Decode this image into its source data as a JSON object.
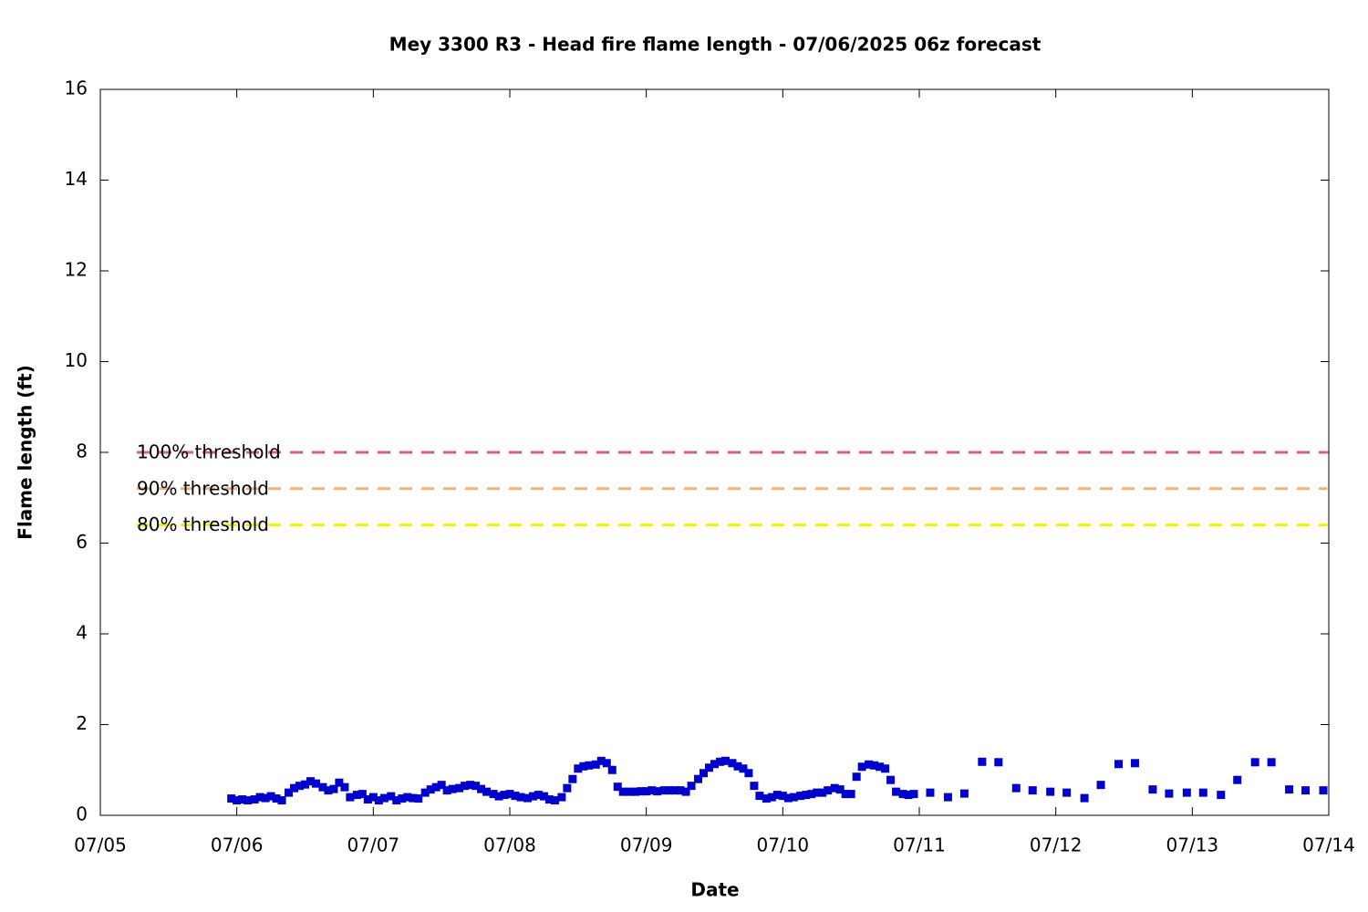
{
  "chart_data": {
    "type": "scatter",
    "title": "Mey 3300 R3 - Head fire flame length - 07/06/2025 06z forecast",
    "xlabel": "Date",
    "ylabel": "Flame length (ft)",
    "xlim": [
      5,
      14
    ],
    "ylim": [
      0,
      16
    ],
    "xticks": [
      {
        "value": 5,
        "label": "07/05"
      },
      {
        "value": 6,
        "label": "07/06"
      },
      {
        "value": 7,
        "label": "07/07"
      },
      {
        "value": 8,
        "label": "07/08"
      },
      {
        "value": 9,
        "label": "07/09"
      },
      {
        "value": 10,
        "label": "07/10"
      },
      {
        "value": 11,
        "label": "07/11"
      },
      {
        "value": 12,
        "label": "07/12"
      },
      {
        "value": 13,
        "label": "07/13"
      },
      {
        "value": 14,
        "label": "07/14"
      }
    ],
    "yticks": [
      0,
      2,
      4,
      6,
      8,
      10,
      12,
      14,
      16
    ],
    "series": [
      {
        "color": "#0000cc",
        "x": [
          5.96,
          6.0,
          6.04,
          6.08,
          6.13,
          6.17,
          6.21,
          6.25,
          6.29,
          6.33,
          6.38,
          6.42,
          6.46,
          6.5,
          6.54,
          6.58,
          6.63,
          6.67,
          6.71,
          6.75,
          6.79,
          6.83,
          6.88,
          6.92,
          6.96,
          7.0,
          7.04,
          7.08,
          7.13,
          7.17,
          7.21,
          7.25,
          7.29,
          7.33,
          7.38,
          7.42,
          7.46,
          7.5,
          7.54,
          7.58,
          7.63,
          7.67,
          7.71,
          7.75,
          7.79,
          7.83,
          7.88,
          7.92,
          7.96,
          8.0,
          8.04,
          8.08,
          8.13,
          8.17,
          8.21,
          8.25,
          8.29,
          8.33,
          8.38,
          8.42,
          8.46,
          8.5,
          8.54,
          8.58,
          8.63,
          8.67,
          8.71,
          8.75,
          8.79,
          8.83,
          8.88,
          8.92,
          8.96,
          9.0,
          9.04,
          9.08,
          9.13,
          9.17,
          9.21,
          9.25,
          9.29,
          9.33,
          9.38,
          9.42,
          9.46,
          9.5,
          9.54,
          9.58,
          9.63,
          9.67,
          9.71,
          9.75,
          9.79,
          9.83,
          9.88,
          9.92,
          9.96,
          10.0,
          10.04,
          10.08,
          10.13,
          10.17,
          10.21,
          10.25,
          10.29,
          10.33,
          10.38,
          10.42,
          10.46,
          10.5,
          10.54,
          10.58,
          10.63,
          10.67,
          10.71,
          10.75,
          10.79,
          10.83,
          10.88,
          10.92,
          10.96,
          11.08,
          11.21,
          11.33,
          11.46,
          11.58,
          11.71,
          11.83,
          11.96,
          12.08,
          12.21,
          12.33,
          12.46,
          12.58,
          12.71,
          12.83,
          12.96,
          13.08,
          13.21,
          13.33,
          13.46,
          13.58,
          13.71,
          13.83,
          13.96
        ],
        "values": [
          0.37,
          0.33,
          0.35,
          0.33,
          0.35,
          0.4,
          0.38,
          0.42,
          0.37,
          0.33,
          0.5,
          0.6,
          0.65,
          0.68,
          0.75,
          0.7,
          0.62,
          0.55,
          0.58,
          0.72,
          0.62,
          0.4,
          0.45,
          0.47,
          0.35,
          0.4,
          0.33,
          0.38,
          0.42,
          0.33,
          0.37,
          0.4,
          0.38,
          0.37,
          0.5,
          0.57,
          0.62,
          0.67,
          0.55,
          0.58,
          0.6,
          0.65,
          0.67,
          0.65,
          0.58,
          0.52,
          0.47,
          0.42,
          0.45,
          0.47,
          0.43,
          0.4,
          0.38,
          0.42,
          0.45,
          0.42,
          0.35,
          0.33,
          0.4,
          0.6,
          0.8,
          1.03,
          1.08,
          1.1,
          1.12,
          1.2,
          1.15,
          1.0,
          0.63,
          0.52,
          0.52,
          0.52,
          0.53,
          0.53,
          0.55,
          0.53,
          0.55,
          0.55,
          0.55,
          0.55,
          0.52,
          0.65,
          0.8,
          0.93,
          1.05,
          1.13,
          1.18,
          1.2,
          1.15,
          1.08,
          1.03,
          0.93,
          0.65,
          0.43,
          0.37,
          0.4,
          0.45,
          0.43,
          0.38,
          0.4,
          0.43,
          0.45,
          0.47,
          0.5,
          0.5,
          0.55,
          0.6,
          0.57,
          0.47,
          0.47,
          0.85,
          1.07,
          1.12,
          1.1,
          1.07,
          1.03,
          0.78,
          0.52,
          0.47,
          0.45,
          0.47,
          0.5,
          0.4,
          0.48,
          1.18,
          1.17,
          0.6,
          0.55,
          0.52,
          0.5,
          0.38,
          0.67,
          1.13,
          1.15,
          0.57,
          0.48,
          0.5,
          0.5,
          0.45,
          0.78,
          1.17,
          1.17,
          0.57,
          0.55,
          0.55
        ]
      }
    ],
    "thresholds": [
      {
        "name": "100% threshold",
        "value": 8,
        "color": "#dc6080"
      },
      {
        "name": "90% threshold",
        "value": 7.2,
        "color": "#f0b27a"
      },
      {
        "name": "80% threshold",
        "value": 6.4,
        "color": "#f2f200"
      }
    ]
  }
}
